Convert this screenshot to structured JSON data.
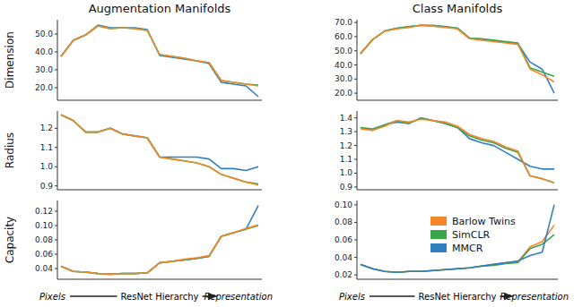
{
  "chart_data": [
    {
      "type": "line",
      "title": "Augmentation Manifolds",
      "ylabel": "Dimension",
      "categories": [
        null,
        null,
        null,
        null,
        null,
        null,
        null,
        null,
        null,
        null,
        null,
        null,
        null,
        null,
        null,
        null,
        null
      ],
      "ylim": [
        13,
        58
      ],
      "yticks": [
        {
          "value": 20,
          "label": "20.0"
        },
        {
          "value": 30,
          "label": "30.0"
        },
        {
          "value": 40,
          "label": "40.0"
        },
        {
          "value": 50,
          "label": "50.0"
        }
      ],
      "series": [
        {
          "name": "MMCR",
          "color": "#2f7fc1",
          "values": [
            37.5,
            46.5,
            49.5,
            55,
            53.5,
            53.5,
            53.5,
            52.5,
            38,
            37,
            36,
            35,
            33.5,
            23,
            22,
            21,
            15
          ]
        },
        {
          "name": "SimCLR",
          "color": "#3aa64a",
          "values": [
            37.5,
            46.5,
            49.5,
            54.5,
            53,
            53.5,
            53,
            52,
            38.5,
            37.5,
            36.5,
            35,
            34,
            24,
            23,
            22,
            21.5
          ]
        },
        {
          "name": "Barlow Twins",
          "color": "#f5872b",
          "values": [
            37.5,
            46.5,
            49.5,
            54.5,
            53,
            53.5,
            53,
            52,
            38.5,
            37.5,
            36.5,
            35,
            34,
            24,
            23,
            22,
            21
          ]
        }
      ]
    },
    {
      "type": "line",
      "ylabel": "Radius",
      "categories": [
        null,
        null,
        null,
        null,
        null,
        null,
        null,
        null,
        null,
        null,
        null,
        null,
        null,
        null,
        null,
        null,
        null
      ],
      "ylim": [
        0.88,
        1.29
      ],
      "yticks": [
        0.9,
        {
          "value": 1.0,
          "label": "1.0"
        },
        1.1,
        1.2
      ],
      "series": [
        {
          "name": "MMCR",
          "color": "#2f7fc1",
          "values": [
            1.27,
            1.24,
            1.18,
            1.18,
            1.2,
            1.17,
            1.16,
            1.15,
            1.05,
            1.05,
            1.05,
            1.05,
            1.04,
            0.99,
            0.99,
            0.98,
            1.0
          ]
        },
        {
          "name": "SimCLR",
          "color": "#3aa64a",
          "values": [
            1.27,
            1.24,
            1.18,
            1.18,
            1.2,
            1.17,
            1.16,
            1.15,
            1.05,
            1.04,
            1.03,
            1.02,
            1.0,
            0.96,
            0.94,
            0.92,
            0.91
          ]
        },
        {
          "name": "Barlow Twins",
          "color": "#f5872b",
          "values": [
            1.27,
            1.24,
            1.18,
            1.18,
            1.2,
            1.17,
            1.16,
            1.15,
            1.05,
            1.04,
            1.03,
            1.02,
            1.0,
            0.96,
            0.94,
            0.92,
            0.905
          ]
        }
      ]
    },
    {
      "type": "line",
      "ylabel": "Capacity",
      "xlabel": "ResNet Hierarchy",
      "annotations": [
        "Pixels",
        "Representation"
      ],
      "categories": [
        null,
        null,
        null,
        null,
        null,
        null,
        null,
        null,
        null,
        null,
        null,
        null,
        null,
        null,
        null,
        null,
        null
      ],
      "ylim": [
        0.025,
        0.135
      ],
      "yticks": [
        0.04,
        0.06,
        0.08,
        {
          "value": 0.1,
          "label": "0.10"
        },
        0.12
      ],
      "series": [
        {
          "name": "MMCR",
          "color": "#2f7fc1",
          "values": [
            0.043,
            0.036,
            0.035,
            0.033,
            0.032,
            0.033,
            0.033,
            0.034,
            0.048,
            0.05,
            0.052,
            0.054,
            0.057,
            0.085,
            0.09,
            0.095,
            0.128
          ]
        },
        {
          "name": "SimCLR",
          "color": "#3aa64a",
          "values": [
            0.043,
            0.036,
            0.035,
            0.033,
            0.032,
            0.033,
            0.033,
            0.034,
            0.048,
            0.05,
            0.052,
            0.054,
            0.057,
            0.085,
            0.09,
            0.095,
            0.1
          ]
        },
        {
          "name": "Barlow Twins",
          "color": "#f5872b",
          "values": [
            0.043,
            0.036,
            0.035,
            0.033,
            0.032,
            0.033,
            0.033,
            0.034,
            0.048,
            0.05,
            0.053,
            0.055,
            0.058,
            0.085,
            0.09,
            0.096,
            0.101
          ]
        }
      ]
    },
    {
      "type": "line",
      "title": "Class Manifolds",
      "categories": [
        null,
        null,
        null,
        null,
        null,
        null,
        null,
        null,
        null,
        null,
        null,
        null,
        null,
        null,
        null,
        null,
        null
      ],
      "ylim": [
        15,
        72
      ],
      "yticks": [
        {
          "value": 20,
          "label": "20.0"
        },
        {
          "value": 30,
          "label": "30.0"
        },
        {
          "value": 40,
          "label": "40.0"
        },
        {
          "value": 50,
          "label": "50.0"
        },
        {
          "value": 60,
          "label": "60.0"
        },
        {
          "value": 70,
          "label": "70.0"
        }
      ],
      "series": [
        {
          "name": "MMCR",
          "color": "#2f7fc1",
          "values": [
            48,
            58,
            64,
            66,
            67,
            68,
            68,
            67,
            66,
            59,
            58,
            57,
            56,
            55,
            42,
            37,
            20
          ]
        },
        {
          "name": "SimCLR",
          "color": "#3aa64a",
          "values": [
            48,
            58,
            64,
            66,
            67,
            68,
            67.5,
            67,
            66,
            59,
            58.5,
            57.5,
            56.5,
            55.5,
            38,
            35,
            32
          ]
        },
        {
          "name": "Barlow Twins",
          "color": "#f5872b",
          "values": [
            48,
            58,
            64,
            65.5,
            66.5,
            68,
            67.5,
            66.5,
            65.5,
            58.5,
            57.5,
            56.5,
            55.5,
            54.5,
            37,
            33,
            28
          ]
        }
      ]
    },
    {
      "type": "line",
      "categories": [
        null,
        null,
        null,
        null,
        null,
        null,
        null,
        null,
        null,
        null,
        null,
        null,
        null,
        null,
        null,
        null,
        null
      ],
      "ylim": [
        0.88,
        1.45
      ],
      "yticks": [
        0.9,
        {
          "value": 1.0,
          "label": "1.0"
        },
        1.1,
        1.2,
        1.3,
        1.4
      ],
      "series": [
        {
          "name": "MMCR",
          "color": "#2f7fc1",
          "values": [
            1.33,
            1.31,
            1.35,
            1.37,
            1.36,
            1.4,
            1.38,
            1.36,
            1.33,
            1.25,
            1.22,
            1.2,
            1.15,
            1.1,
            1.05,
            1.03,
            1.03
          ]
        },
        {
          "name": "SimCLR",
          "color": "#3aa64a",
          "values": [
            1.33,
            1.32,
            1.35,
            1.38,
            1.36,
            1.4,
            1.38,
            1.36,
            1.33,
            1.27,
            1.24,
            1.22,
            1.18,
            1.15,
            0.98,
            0.96,
            0.93
          ]
        },
        {
          "name": "Barlow Twins",
          "color": "#f5872b",
          "values": [
            1.32,
            1.31,
            1.34,
            1.38,
            1.37,
            1.39,
            1.38,
            1.37,
            1.34,
            1.28,
            1.25,
            1.23,
            1.19,
            1.16,
            0.98,
            0.96,
            0.93
          ]
        }
      ]
    },
    {
      "type": "line",
      "xlabel": "ResNet Hierarchy",
      "annotations": [
        "Pixels",
        "Representation"
      ],
      "legend": "center",
      "categories": [
        null,
        null,
        null,
        null,
        null,
        null,
        null,
        null,
        null,
        null,
        null,
        null,
        null,
        null,
        null,
        null,
        null
      ],
      "ylim": [
        0.015,
        0.105
      ],
      "yticks": [
        0.02,
        0.04,
        0.06,
        0.08,
        {
          "value": 0.1,
          "label": "0.10"
        }
      ],
      "series": [
        {
          "name": "Barlow Twins",
          "color": "#f5872b",
          "values": [
            0.032,
            0.027,
            0.024,
            0.023,
            0.024,
            0.024,
            0.025,
            0.026,
            0.027,
            0.028,
            0.03,
            0.032,
            0.034,
            0.035,
            0.052,
            0.058,
            0.077
          ]
        },
        {
          "name": "SimCLR",
          "color": "#3aa64a",
          "values": [
            0.032,
            0.027,
            0.024,
            0.023,
            0.024,
            0.024,
            0.025,
            0.026,
            0.027,
            0.028,
            0.03,
            0.031,
            0.033,
            0.034,
            0.05,
            0.055,
            0.066
          ]
        },
        {
          "name": "MMCR",
          "color": "#2f7fc1",
          "values": [
            0.032,
            0.027,
            0.024,
            0.023,
            0.024,
            0.024,
            0.025,
            0.026,
            0.027,
            0.028,
            0.03,
            0.032,
            0.034,
            0.036,
            0.042,
            0.046,
            0.1
          ]
        }
      ]
    }
  ]
}
